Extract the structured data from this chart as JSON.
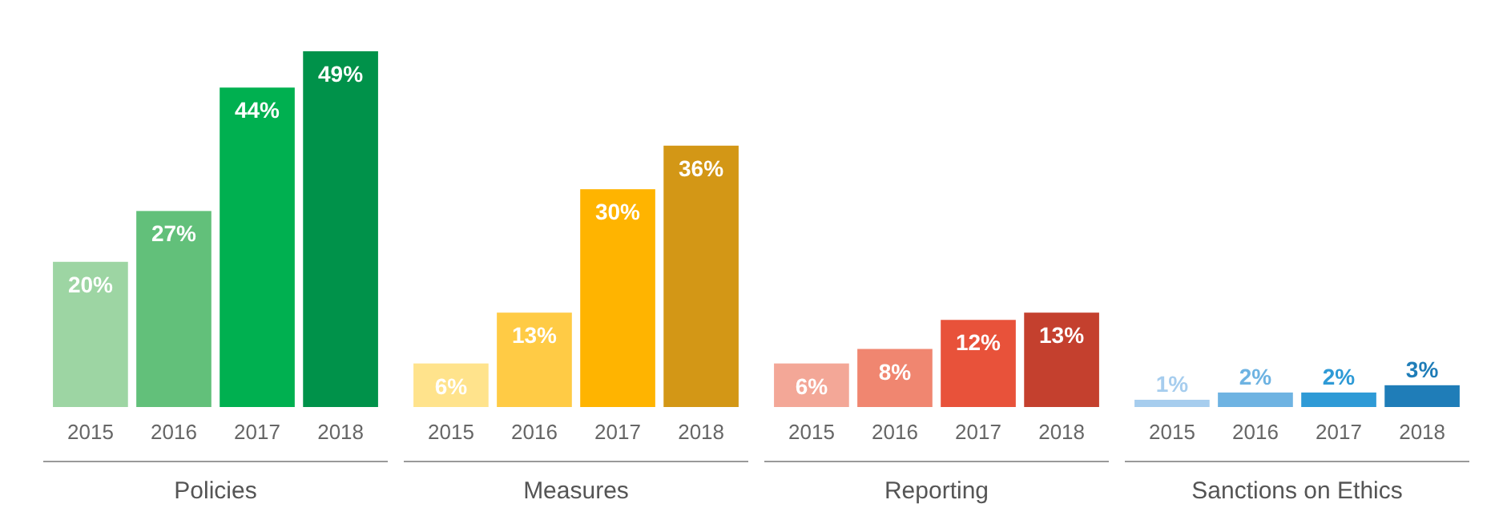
{
  "chart_data": [
    {
      "type": "bar",
      "xlabel": "Policies",
      "categories": [
        "2015",
        "2016",
        "2017",
        "2018"
      ],
      "values": [
        20,
        27,
        44,
        49
      ],
      "colors": [
        "#9dd5a3",
        "#62c07a",
        "#00b050",
        "#00924a"
      ],
      "value_labels": [
        "20%",
        "27%",
        "44%",
        "49%"
      ],
      "tick_labels": "x"
    },
    {
      "type": "bar",
      "xlabel": "Measures",
      "categories": [
        "2015",
        "2016",
        "2017",
        "2018"
      ],
      "values": [
        6,
        13,
        30,
        36
      ],
      "colors": [
        "#ffe38c",
        "#ffcb45",
        "#ffb400",
        "#d39716"
      ],
      "value_labels": [
        "6%",
        "13%",
        "30%",
        "36%"
      ],
      "tick_labels": "x"
    },
    {
      "type": "bar",
      "xlabel": "Reporting",
      "categories": [
        "2015",
        "2016",
        "2017",
        "2018"
      ],
      "values": [
        6,
        8,
        12,
        13
      ],
      "colors": [
        "#f3a797",
        "#f08670",
        "#e8523a",
        "#c4402e"
      ],
      "value_labels": [
        "6%",
        "8%",
        "12%",
        "13%"
      ],
      "tick_labels": "x"
    },
    {
      "type": "bar",
      "xlabel": "Sanctions on Ethics",
      "categories": [
        "2015",
        "2016",
        "2017",
        "2018"
      ],
      "values": [
        1,
        2,
        2,
        3
      ],
      "colors": [
        "#a6cdee",
        "#6eb3e2",
        "#2e9ad6",
        "#1f7db8"
      ],
      "value_labels": [
        "1%",
        "2%",
        "2%",
        "3%"
      ],
      "tick_labels": "x"
    }
  ]
}
